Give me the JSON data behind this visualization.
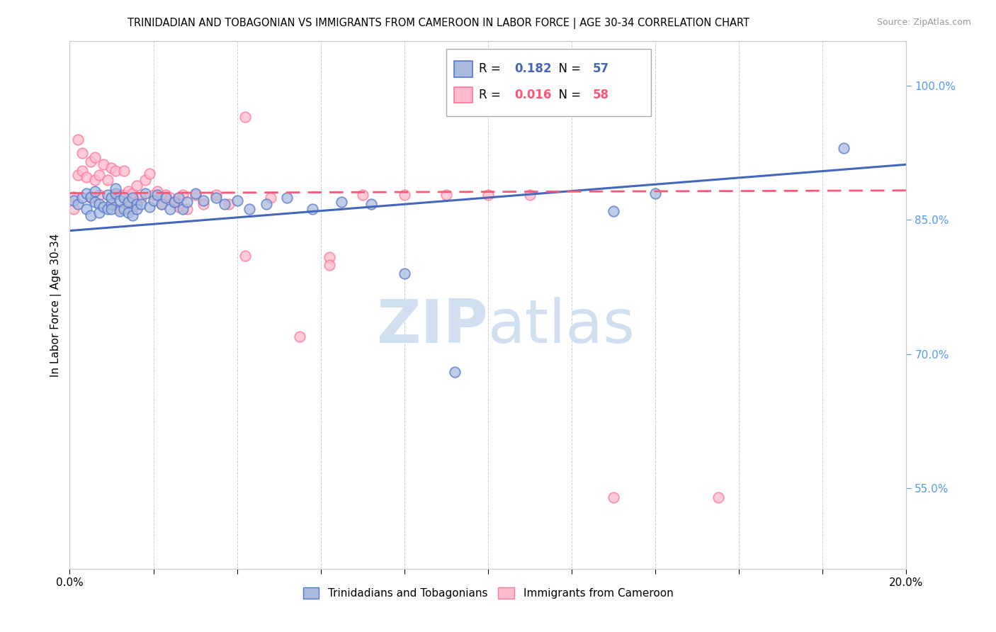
{
  "title": "TRINIDADIAN AND TOBAGONIAN VS IMMIGRANTS FROM CAMEROON IN LABOR FORCE | AGE 30-34 CORRELATION CHART",
  "source": "Source: ZipAtlas.com",
  "ylabel": "In Labor Force | Age 30-34",
  "yticks_pct": [
    55.0,
    70.0,
    85.0,
    100.0
  ],
  "legend_r_blue": "0.182",
  "legend_n_blue": "57",
  "legend_r_pink": "0.016",
  "legend_n_pink": "58",
  "blue_face": "#AABBDD",
  "blue_edge": "#5577CC",
  "pink_face": "#FFBBCC",
  "pink_edge": "#FF7799",
  "line_blue_color": "#4466BB",
  "line_pink_color": "#FF5577",
  "axis_label_color": "#5599EE",
  "watermark_color": "#CCDDF0",
  "blue_x": [
    0.001,
    0.002,
    0.003,
    0.004,
    0.004,
    0.005,
    0.005,
    0.006,
    0.006,
    0.007,
    0.007,
    0.008,
    0.009,
    0.009,
    0.01,
    0.01,
    0.01,
    0.011,
    0.011,
    0.012,
    0.012,
    0.013,
    0.013,
    0.014,
    0.014,
    0.015,
    0.015,
    0.016,
    0.016,
    0.017,
    0.018,
    0.019,
    0.02,
    0.021,
    0.022,
    0.023,
    0.024,
    0.025,
    0.026,
    0.027,
    0.028,
    0.03,
    0.032,
    0.035,
    0.037,
    0.04,
    0.043,
    0.047,
    0.052,
    0.058,
    0.065,
    0.072,
    0.08,
    0.092,
    0.14,
    0.185,
    0.13
  ],
  "blue_y": [
    0.872,
    0.868,
    0.875,
    0.862,
    0.88,
    0.876,
    0.855,
    0.87,
    0.882,
    0.868,
    0.858,
    0.865,
    0.878,
    0.862,
    0.868,
    0.875,
    0.862,
    0.88,
    0.885,
    0.872,
    0.86,
    0.875,
    0.862,
    0.87,
    0.858,
    0.875,
    0.855,
    0.868,
    0.862,
    0.868,
    0.88,
    0.865,
    0.872,
    0.878,
    0.868,
    0.875,
    0.862,
    0.87,
    0.875,
    0.862,
    0.87,
    0.88,
    0.872,
    0.875,
    0.868,
    0.872,
    0.862,
    0.868,
    0.875,
    0.862,
    0.87,
    0.868,
    0.79,
    0.68,
    0.88,
    0.93,
    0.86
  ],
  "pink_x": [
    0.001,
    0.001,
    0.002,
    0.002,
    0.003,
    0.003,
    0.004,
    0.005,
    0.005,
    0.006,
    0.006,
    0.007,
    0.007,
    0.008,
    0.009,
    0.01,
    0.01,
    0.011,
    0.011,
    0.012,
    0.012,
    0.013,
    0.013,
    0.014,
    0.014,
    0.015,
    0.015,
    0.016,
    0.016,
    0.017,
    0.018,
    0.019,
    0.02,
    0.021,
    0.022,
    0.023,
    0.024,
    0.025,
    0.026,
    0.027,
    0.028,
    0.03,
    0.032,
    0.035,
    0.038,
    0.042,
    0.048,
    0.055,
    0.062,
    0.07,
    0.08,
    0.09,
    0.1,
    0.11,
    0.13,
    0.155,
    0.042,
    0.062
  ],
  "pink_y": [
    0.876,
    0.862,
    0.94,
    0.9,
    0.925,
    0.905,
    0.898,
    0.915,
    0.875,
    0.92,
    0.895,
    0.9,
    0.878,
    0.912,
    0.895,
    0.908,
    0.875,
    0.88,
    0.905,
    0.878,
    0.862,
    0.905,
    0.878,
    0.87,
    0.882,
    0.88,
    0.862,
    0.888,
    0.87,
    0.875,
    0.895,
    0.902,
    0.878,
    0.882,
    0.868,
    0.878,
    0.875,
    0.87,
    0.865,
    0.878,
    0.862,
    0.878,
    0.868,
    0.878,
    0.868,
    0.81,
    0.875,
    0.72,
    0.808,
    0.878,
    0.878,
    0.878,
    0.878,
    0.878,
    0.54,
    0.54,
    0.965,
    0.8
  ],
  "blue_trend_x": [
    0.0,
    0.2
  ],
  "blue_trend_y": [
    0.838,
    0.912
  ],
  "pink_trend_x": [
    0.0,
    0.2
  ],
  "pink_trend_y": [
    0.88,
    0.883
  ],
  "xlim": [
    0.0,
    0.2
  ],
  "ylim": [
    0.46,
    1.05
  ],
  "figsize": [
    14.06,
    8.92
  ],
  "dpi": 100
}
